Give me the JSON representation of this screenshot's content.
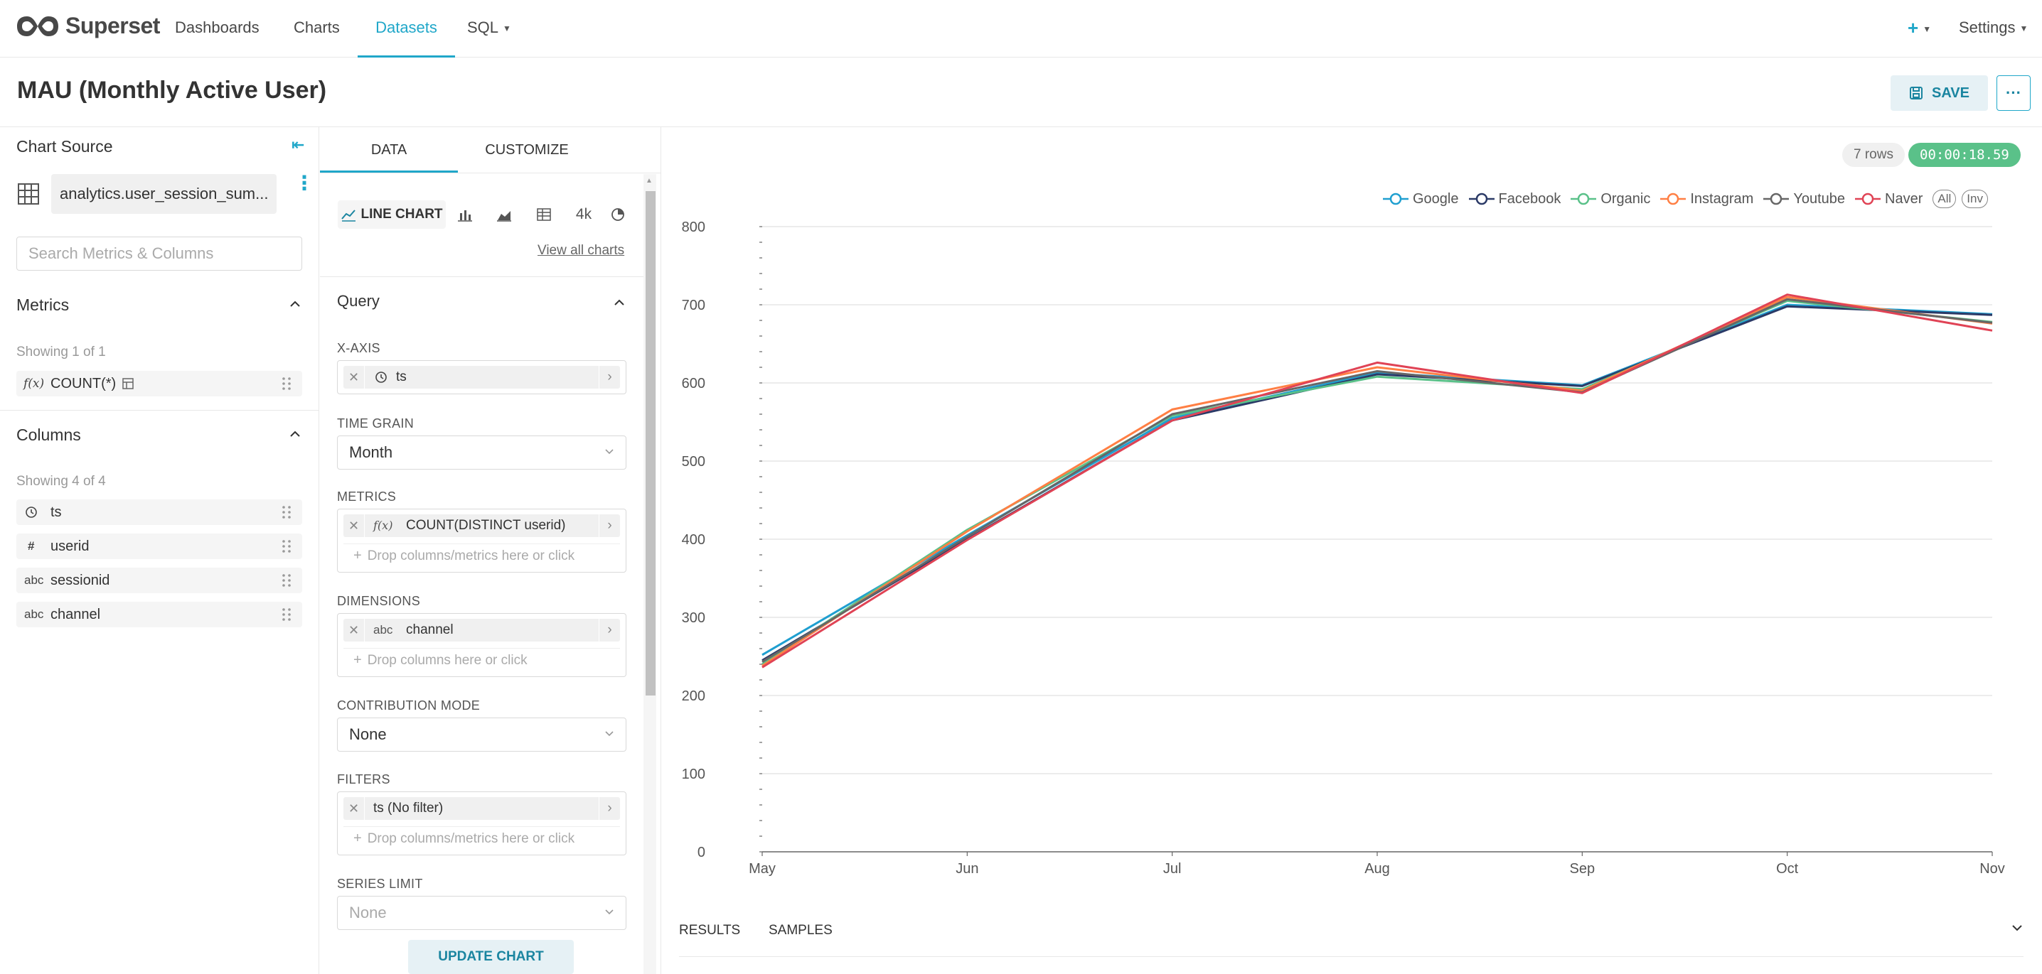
{
  "nav": {
    "brand": "Superset",
    "items": [
      "Dashboards",
      "Charts",
      "Datasets",
      "SQL"
    ],
    "active": "Datasets",
    "plus": "+",
    "settings": "Settings"
  },
  "header": {
    "title": "MAU (Monthly Active User)",
    "save_label": "SAVE",
    "more_label": "···"
  },
  "chart_source": {
    "title": "Chart Source",
    "dataset": "analytics.user_session_sum...",
    "search_placeholder": "Search Metrics & Columns",
    "metrics_title": "Metrics",
    "metrics_showing": "Showing 1 of 1",
    "metrics": [
      {
        "icon": "f(x)",
        "label": "COUNT(*)"
      }
    ],
    "columns_title": "Columns",
    "columns_showing": "Showing 4 of 4",
    "columns": [
      {
        "icon": "clock",
        "label": "ts"
      },
      {
        "icon": "#",
        "label": "userid"
      },
      {
        "icon": "abc",
        "label": "sessionid"
      },
      {
        "icon": "abc",
        "label": "channel"
      }
    ]
  },
  "controls": {
    "tabs": [
      "DATA",
      "CUSTOMIZE"
    ],
    "active_tab": "DATA",
    "viz_type": "LINE CHART",
    "view_all": "View all charts",
    "query_title": "Query",
    "x_axis_label": "X-AXIS",
    "x_axis_value": "ts",
    "time_grain_label": "TIME GRAIN",
    "time_grain_value": "Month",
    "metrics_label": "METRICS",
    "metrics_value": "COUNT(DISTINCT userid)",
    "metrics_icon": "f(x)",
    "drop_metrics_hint": "Drop columns/metrics here or click",
    "dimensions_label": "DIMENSIONS",
    "dimensions_value": "channel",
    "dimensions_icon": "abc",
    "drop_columns_hint": "Drop columns here or click",
    "contribution_label": "CONTRIBUTION MODE",
    "contribution_value": "None",
    "filters_label": "FILTERS",
    "filters_value": "ts (No filter)",
    "drop_filters_hint": "Drop columns/metrics here or click",
    "series_limit_label": "SERIES LIMIT",
    "series_limit_placeholder": "None",
    "update_label": "UPDATE CHART",
    "viz_4k": "4k"
  },
  "results": {
    "rows": "7 rows",
    "time": "00:00:18.59",
    "tabs": [
      "RESULTS",
      "SAMPLES"
    ]
  },
  "legend_buttons": [
    "All",
    "Inv"
  ],
  "colors": {
    "accent": "#20a7c9",
    "success": "#5ac189"
  },
  "chart_data": {
    "type": "line",
    "categories": [
      "May",
      "Jun",
      "Jul",
      "Aug",
      "Sep",
      "Oct",
      "Nov"
    ],
    "ylim": [
      0,
      800
    ],
    "yticks": [
      0,
      100,
      200,
      300,
      400,
      500,
      600,
      700,
      800
    ],
    "grid": true,
    "legend_position": "top-right",
    "series": [
      {
        "name": "Google",
        "color": "#1f9fd0",
        "values": [
          252,
          405,
          555,
          613,
          597,
          700,
          688
        ]
      },
      {
        "name": "Facebook",
        "color": "#2b3a67",
        "values": [
          245,
          400,
          552,
          611,
          596,
          698,
          687
        ]
      },
      {
        "name": "Organic",
        "color": "#5ac189",
        "values": [
          240,
          412,
          558,
          608,
          592,
          705,
          678
        ]
      },
      {
        "name": "Instagram",
        "color": "#ff7f44",
        "values": [
          238,
          410,
          566,
          620,
          590,
          710,
          676
        ]
      },
      {
        "name": "Youtube",
        "color": "#666666",
        "values": [
          243,
          403,
          560,
          615,
          588,
          707,
          677
        ]
      },
      {
        "name": "Naver",
        "color": "#e04355",
        "values": [
          236,
          399,
          552,
          626,
          587,
          713,
          667
        ]
      }
    ]
  }
}
